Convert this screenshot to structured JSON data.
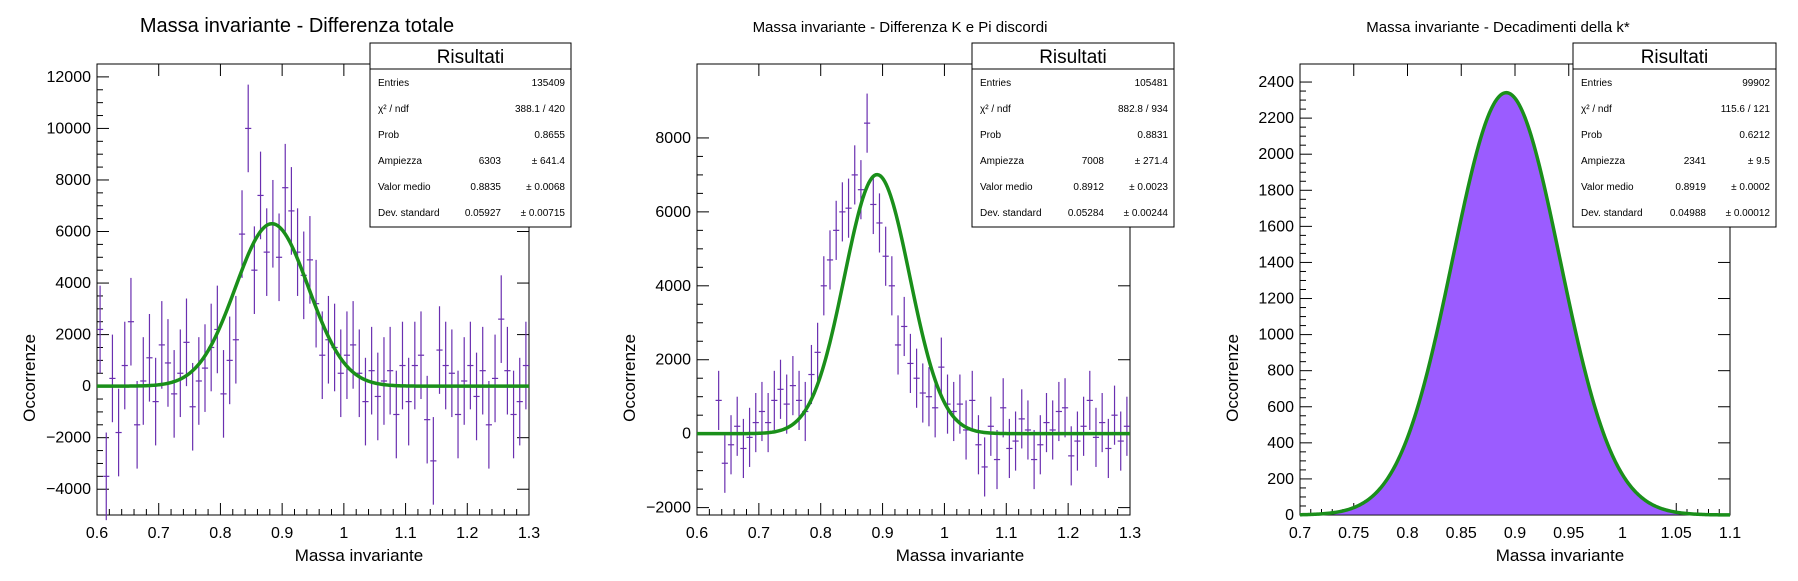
{
  "chart_data": [
    {
      "type": "scatter",
      "title": "Massa invariante - Differenza totale",
      "xlabel": "Massa invariante",
      "ylabel": "Occorrenze",
      "xlim": [
        0.6,
        1.3
      ],
      "ylim": [
        -5000,
        12500
      ],
      "xticks": [
        "0.6",
        "0.7",
        "0.8",
        "0.9",
        "1",
        "1.1",
        "1.2",
        "1.3"
      ],
      "yticks": [
        "−4000",
        "−2000",
        "0",
        "2000",
        "4000",
        "6000",
        "8000",
        "10000",
        "12000"
      ],
      "series": [
        {
          "kind": "points-with-errorbars",
          "color": "#6a2fb0",
          "x": [
            0.605,
            0.615,
            0.625,
            0.635,
            0.645,
            0.655,
            0.665,
            0.675,
            0.685,
            0.695,
            0.705,
            0.715,
            0.725,
            0.735,
            0.745,
            0.755,
            0.765,
            0.775,
            0.785,
            0.795,
            0.805,
            0.815,
            0.825,
            0.835,
            0.845,
            0.855,
            0.865,
            0.875,
            0.885,
            0.895,
            0.905,
            0.915,
            0.925,
            0.935,
            0.945,
            0.955,
            0.965,
            0.975,
            0.985,
            0.995,
            1.005,
            1.015,
            1.025,
            1.035,
            1.045,
            1.055,
            1.065,
            1.075,
            1.085,
            1.095,
            1.105,
            1.115,
            1.125,
            1.135,
            1.145,
            1.155,
            1.165,
            1.175,
            1.185,
            1.195,
            1.205,
            1.215,
            1.225,
            1.235,
            1.245,
            1.255,
            1.265,
            1.275,
            1.285,
            1.295
          ],
          "y": [
            2200,
            -3500,
            300,
            -1800,
            800,
            2500,
            -1500,
            200,
            1100,
            -600,
            1600,
            900,
            -300,
            500,
            1700,
            -800,
            200,
            700,
            1500,
            2200,
            -300,
            1000,
            1800,
            5900,
            10000,
            4500,
            7400,
            5200,
            6300,
            5000,
            7700,
            6800,
            5200,
            4300,
            4900,
            3200,
            1200,
            1800,
            1500,
            500,
            1200,
            1600,
            500,
            -600,
            600,
            -400,
            200,
            600,
            -1100,
            800,
            -600,
            800,
            1200,
            -1300,
            -2900,
            1400,
            800,
            500,
            -1100,
            200,
            800,
            -400,
            600,
            -1500,
            300,
            2600,
            600,
            -1100,
            -600,
            800
          ],
          "yerr": [
            1700,
            1700,
            1700,
            1700,
            1700,
            1700,
            1700,
            1700,
            1700,
            1700,
            1700,
            1700,
            1700,
            1700,
            1700,
            1700,
            1700,
            1700,
            1700,
            1700,
            1700,
            1700,
            1700,
            1700,
            1700,
            1700,
            1700,
            1700,
            1700,
            1700,
            1700,
            1700,
            1700,
            1700,
            1700,
            1700,
            1700,
            1700,
            1700,
            1700,
            1700,
            1700,
            1700,
            1700,
            1700,
            1700,
            1700,
            1700,
            1700,
            1700,
            1700,
            1700,
            1700,
            1700,
            1700,
            1700,
            1700,
            1700,
            1700,
            1700,
            1700,
            1700,
            1700,
            1700,
            1700,
            1700,
            1700,
            1700,
            1700,
            1700
          ]
        },
        {
          "kind": "gaussian-fit",
          "color": "#1a8f1a",
          "amplitude": 6303,
          "mean": 0.8835,
          "sigma": 0.05927
        }
      ],
      "stats": {
        "title": "Risultati",
        "rows": [
          {
            "label": "Entries",
            "value": "135409",
            "error": ""
          },
          {
            "label": "χ² / ndf",
            "value": "388.1 / 420",
            "error": ""
          },
          {
            "label": "Prob",
            "value": "0.8655",
            "error": ""
          },
          {
            "label": "Ampiezza",
            "value": "6303",
            "error": "± 641.4"
          },
          {
            "label": "Valor medio",
            "value": "0.8835",
            "error": "± 0.0068"
          },
          {
            "label": "Dev. standard",
            "value": "0.05927",
            "error": "± 0.00715"
          }
        ]
      }
    },
    {
      "type": "scatter",
      "title": "Massa invariante - Differenza K e Pi discordi",
      "xlabel": "Massa invariante",
      "ylabel": "Occorrenze",
      "xlim": [
        0.6,
        1.3
      ],
      "ylim": [
        -2200,
        10000
      ],
      "xticks": [
        "0.6",
        "0.7",
        "0.8",
        "0.9",
        "1",
        "1.1",
        "1.2",
        "1.3"
      ],
      "yticks": [
        "−2000",
        "0",
        "2000",
        "4000",
        "6000",
        "8000"
      ],
      "series": [
        {
          "kind": "points-with-errorbars",
          "color": "#6a2fb0",
          "x": [
            0.635,
            0.645,
            0.655,
            0.665,
            0.675,
            0.685,
            0.695,
            0.705,
            0.715,
            0.725,
            0.735,
            0.745,
            0.755,
            0.765,
            0.775,
            0.785,
            0.795,
            0.805,
            0.815,
            0.825,
            0.835,
            0.845,
            0.855,
            0.865,
            0.875,
            0.885,
            0.895,
            0.905,
            0.915,
            0.925,
            0.935,
            0.945,
            0.955,
            0.965,
            0.975,
            0.985,
            0.995,
            1.005,
            1.015,
            1.025,
            1.035,
            1.045,
            1.055,
            1.065,
            1.075,
            1.085,
            1.095,
            1.105,
            1.115,
            1.125,
            1.135,
            1.145,
            1.155,
            1.165,
            1.175,
            1.185,
            1.195,
            1.205,
            1.215,
            1.225,
            1.235,
            1.245,
            1.255,
            1.265,
            1.275,
            1.285,
            1.295
          ],
          "y": [
            900,
            -800,
            -300,
            200,
            -400,
            -100,
            300,
            600,
            300,
            900,
            1200,
            800,
            1300,
            900,
            600,
            1600,
            2200,
            4000,
            4700,
            5500,
            6000,
            6100,
            7000,
            6600,
            8400,
            6200,
            5700,
            4800,
            4000,
            2400,
            2900,
            1900,
            1500,
            1100,
            1000,
            700,
            1800,
            800,
            600,
            800,
            100,
            900,
            -300,
            -900,
            200,
            -700,
            700,
            -400,
            -200,
            400,
            100,
            -700,
            -300,
            300,
            100,
            600,
            700,
            -600,
            -200,
            200,
            900,
            -100,
            300,
            -400,
            500,
            -200,
            200
          ],
          "yerr": [
            800,
            800,
            800,
            800,
            800,
            800,
            800,
            800,
            800,
            800,
            800,
            800,
            800,
            800,
            800,
            800,
            800,
            800,
            800,
            800,
            800,
            800,
            800,
            800,
            800,
            800,
            800,
            800,
            800,
            800,
            800,
            800,
            800,
            800,
            800,
            800,
            800,
            800,
            800,
            800,
            800,
            800,
            800,
            800,
            800,
            800,
            800,
            800,
            800,
            800,
            800,
            800,
            800,
            800,
            800,
            800,
            800,
            800,
            800,
            800,
            800,
            800,
            800,
            800,
            800,
            800,
            800
          ]
        },
        {
          "kind": "gaussian-fit",
          "color": "#1a8f1a",
          "amplitude": 7008,
          "mean": 0.8912,
          "sigma": 0.05284
        }
      ],
      "stats": {
        "title": "Risultati",
        "rows": [
          {
            "label": "Entries",
            "value": "105481",
            "error": ""
          },
          {
            "label": "χ² / ndf",
            "value": "882.8 / 934",
            "error": ""
          },
          {
            "label": "Prob",
            "value": "0.8831",
            "error": ""
          },
          {
            "label": "Ampiezza",
            "value": "7008",
            "error": "± 271.4"
          },
          {
            "label": "Valor medio",
            "value": "0.8912",
            "error": "± 0.0023"
          },
          {
            "label": "Dev. standard",
            "value": "0.05284",
            "error": "± 0.00244"
          }
        ]
      }
    },
    {
      "type": "area",
      "title": "Massa invariante - Decadimenti della k*",
      "xlabel": "Massa invariante",
      "ylabel": "Occorrenze",
      "xlim": [
        0.7,
        1.1
      ],
      "ylim": [
        0,
        2500
      ],
      "xticks": [
        "0.7",
        "0.75",
        "0.8",
        "0.85",
        "0.9",
        "0.95",
        "1",
        "1.05",
        "1.1"
      ],
      "yticks": [
        "0",
        "200",
        "400",
        "600",
        "800",
        "1000",
        "1200",
        "1400",
        "1600",
        "1800",
        "2000",
        "2200",
        "2400"
      ],
      "series": [
        {
          "kind": "histogram",
          "color": "#9b5cff",
          "amplitude": 2341,
          "mean": 0.8919,
          "sigma": 0.04988
        },
        {
          "kind": "gaussian-fit",
          "color": "#1a8f1a",
          "amplitude": 2341,
          "mean": 0.8919,
          "sigma": 0.04988
        }
      ],
      "stats": {
        "title": "Risultati",
        "rows": [
          {
            "label": "Entries",
            "value": "99902",
            "error": ""
          },
          {
            "label": "χ² / ndf",
            "value": "115.6 / 121",
            "error": ""
          },
          {
            "label": "Prob",
            "value": "0.6212",
            "error": ""
          },
          {
            "label": "Ampiezza",
            "value": "2341",
            "error": "± 9.5"
          },
          {
            "label": "Valor medio",
            "value": "0.8919",
            "error": "± 0.0002"
          },
          {
            "label": "Dev. standard",
            "value": "0.04988",
            "error": "± 0.00012"
          }
        ]
      }
    }
  ]
}
